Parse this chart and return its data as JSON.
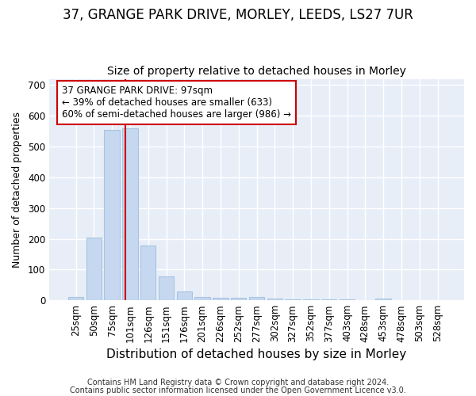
{
  "title1": "37, GRANGE PARK DRIVE, MORLEY, LEEDS, LS27 7UR",
  "title2": "Size of property relative to detached houses in Morley",
  "xlabel": "Distribution of detached houses by size in Morley",
  "ylabel": "Number of detached properties",
  "categories": [
    "25sqm",
    "50sqm",
    "75sqm",
    "101sqm",
    "126sqm",
    "151sqm",
    "176sqm",
    "201sqm",
    "226sqm",
    "252sqm",
    "277sqm",
    "302sqm",
    "327sqm",
    "352sqm",
    "377sqm",
    "403sqm",
    "428sqm",
    "453sqm",
    "478sqm",
    "503sqm",
    "528sqm"
  ],
  "values": [
    10,
    205,
    555,
    560,
    178,
    78,
    28,
    10,
    8,
    7,
    10,
    5,
    4,
    3,
    3,
    3,
    0,
    5,
    0,
    0,
    0
  ],
  "bar_color": "#c5d8f0",
  "bar_edgecolor": "#a8c4e0",
  "vline_color": "#cc0000",
  "vline_x": 2.72,
  "annotation_text": "37 GRANGE PARK DRIVE: 97sqm\n← 39% of detached houses are smaller (633)\n60% of semi-detached houses are larger (986) →",
  "annotation_box_color": "#ffffff",
  "annotation_box_edgecolor": "#cc0000",
  "ylim": [
    0,
    720
  ],
  "yticks": [
    0,
    100,
    200,
    300,
    400,
    500,
    600,
    700
  ],
  "footer1": "Contains HM Land Registry data © Crown copyright and database right 2024.",
  "footer2": "Contains public sector information licensed under the Open Government Licence v3.0.",
  "fig_background_color": "#ffffff",
  "plot_background": "#e8eef8",
  "grid_color": "#ffffff",
  "title1_fontsize": 12,
  "title2_fontsize": 10,
  "xlabel_fontsize": 11,
  "ylabel_fontsize": 9,
  "tick_fontsize": 8.5,
  "footer_fontsize": 7,
  "annotation_fontsize": 8.5
}
